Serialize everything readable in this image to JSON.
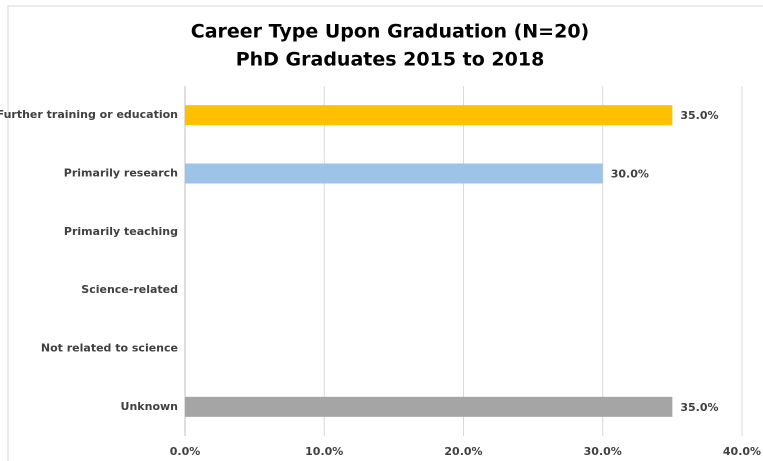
{
  "chart_data": {
    "type": "hbar",
    "title": "Career Type Upon Graduation (N=20)",
    "subtitle": "PhD Graduates 2015 to 2018",
    "categories": [
      "Further training or education",
      "Primarily research",
      "Primarily teaching",
      "Science-related",
      "Not related to science",
      "Unknown"
    ],
    "values": [
      35,
      30,
      0,
      0,
      0,
      35
    ],
    "value_labels": [
      "35.0%",
      "30.0%",
      null,
      null,
      null,
      "35.0%"
    ],
    "colors": [
      "#ffc000",
      "#9dc3e6",
      "#9dc3e6",
      "#9dc3e6",
      "#9dc3e6",
      "#a5a5a5"
    ],
    "xlim": [
      0,
      40
    ],
    "xticks": [
      {
        "value": 0,
        "label": "0.0%"
      },
      {
        "value": 10,
        "label": "10.0%"
      },
      {
        "value": 20,
        "label": "20.0%"
      },
      {
        "value": 30,
        "label": "30.0%"
      },
      {
        "value": 40,
        "label": "40.0%"
      }
    ],
    "grid": true
  }
}
